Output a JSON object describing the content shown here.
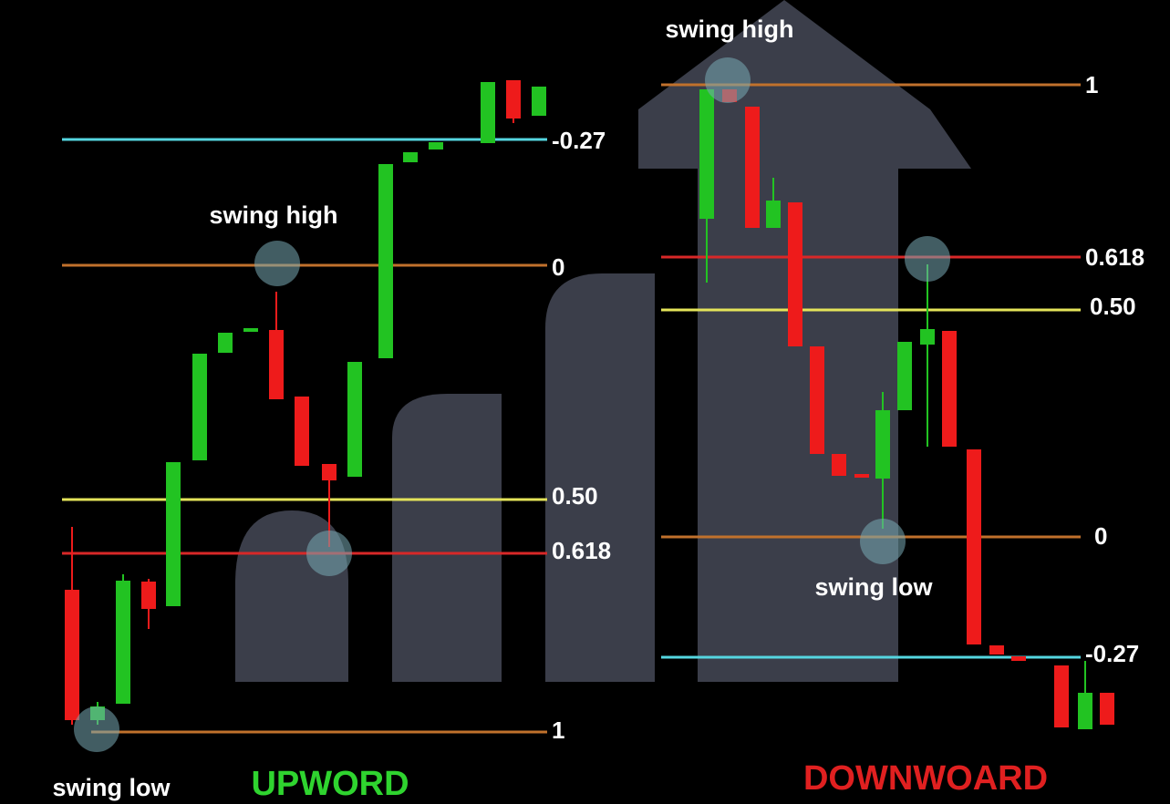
{
  "left": {
    "title": "UPWORD",
    "swing_high": "swing high",
    "swing_low": "swing low",
    "levels": [
      "-0.27",
      "0",
      "0.50",
      "0.618",
      "1"
    ]
  },
  "right": {
    "title": "DOWNWOARD",
    "swing_high": "swing high",
    "swing_low": "swing low",
    "levels": [
      "1",
      "0.618",
      "0.50",
      "0",
      "-0.27"
    ]
  }
}
